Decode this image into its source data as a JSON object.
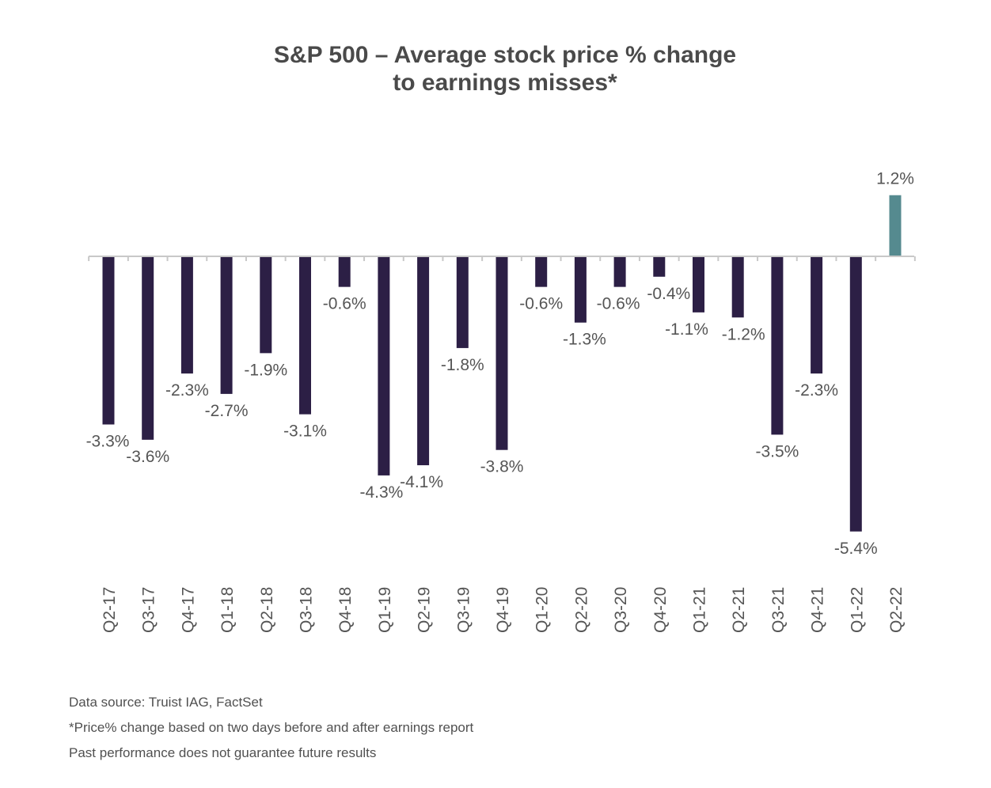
{
  "chart_data": {
    "type": "bar",
    "title": "S&P 500 – Average stock price % change to earnings misses*",
    "title_lines": [
      "S&P 500 – Average stock price % change",
      "to earnings misses*"
    ],
    "xlabel": "",
    "ylabel": "",
    "categories": [
      "Q2-17",
      "Q3-17",
      "Q4-17",
      "Q1-18",
      "Q2-18",
      "Q3-18",
      "Q4-18",
      "Q1-19",
      "Q2-19",
      "Q3-19",
      "Q4-19",
      "Q1-20",
      "Q2-20",
      "Q3-20",
      "Q4-20",
      "Q1-21",
      "Q2-21",
      "Q3-21",
      "Q4-21",
      "Q1-22",
      "Q2-22"
    ],
    "values": [
      -3.3,
      -3.6,
      -2.3,
      -2.7,
      -1.9,
      -3.1,
      -0.6,
      -4.3,
      -4.1,
      -1.8,
      -3.8,
      -0.6,
      -1.3,
      -0.6,
      -0.4,
      -1.1,
      -1.2,
      -3.5,
      -2.3,
      -5.4,
      1.2
    ],
    "data_labels": [
      "-3.3%",
      "-3.6%",
      "-2.3%",
      "-2.7%",
      "-1.9%",
      "-3.1%",
      "-0.6%",
      "-4.3%",
      "-4.1%",
      "-1.8%",
      "-3.8%",
      "-0.6%",
      "-1.3%",
      "-0.6%",
      "-0.4%",
      "-1.1%",
      "-1.2%",
      "-3.5%",
      "-2.3%",
      "-5.4%",
      "1.2%"
    ],
    "ylim": [
      -5.4,
      1.2
    ],
    "grid": false,
    "legend": "none",
    "colors": {
      "negative": "#2c1f45",
      "positive": "#558a8f",
      "axis": "#c8c8c8",
      "label": "#555555"
    }
  },
  "notes": [
    "Data source: Truist IAG, FactSet",
    "*Price% change based on two days before and after earnings report",
    "Past performance does not guarantee future results"
  ]
}
